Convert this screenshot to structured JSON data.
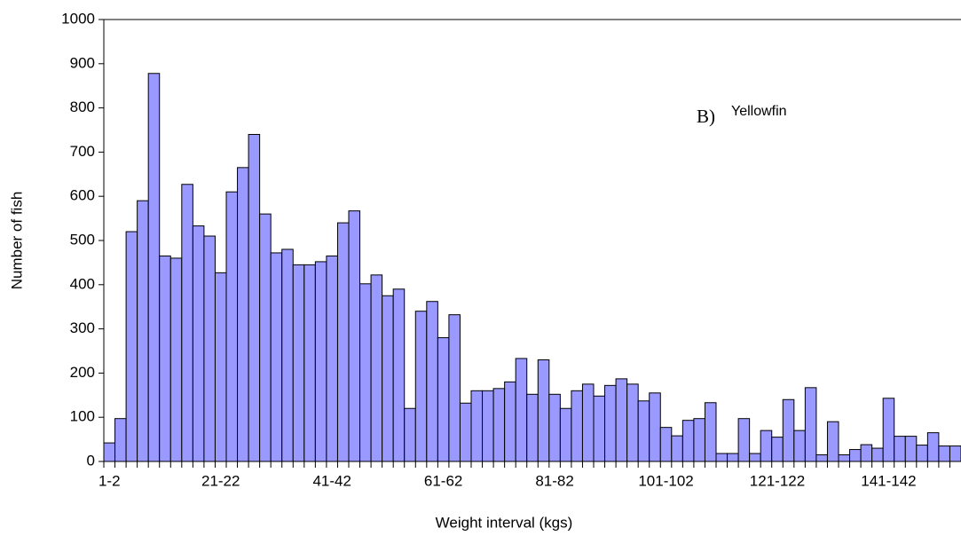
{
  "chart_data": {
    "type": "bar",
    "x_label": "Weight interval (kgs)",
    "y_label": "Number of fish",
    "annotation": {
      "prefix": "B)",
      "text": "Yellowfin"
    },
    "color": "#9999ff",
    "categories": [
      "1-2",
      null,
      null,
      null,
      null,
      null,
      null,
      null,
      null,
      null,
      "21-22",
      null,
      null,
      null,
      null,
      null,
      null,
      null,
      null,
      null,
      "41-42",
      null,
      null,
      null,
      null,
      null,
      null,
      null,
      null,
      null,
      "61-62",
      null,
      null,
      null,
      null,
      null,
      null,
      null,
      null,
      null,
      "81-82",
      null,
      null,
      null,
      null,
      null,
      null,
      null,
      null,
      null,
      "101-102",
      null,
      null,
      null,
      null,
      null,
      null,
      null,
      null,
      null,
      "121-122",
      null,
      null,
      null,
      null,
      null,
      null,
      null,
      null,
      null,
      "141-142",
      null,
      null,
      null,
      null,
      null,
      null
    ],
    "values": [
      42,
      97,
      520,
      590,
      878,
      465,
      460,
      627,
      533,
      510,
      427,
      610,
      665,
      740,
      560,
      472,
      480,
      445,
      445,
      452,
      465,
      540,
      567,
      402,
      422,
      375,
      390,
      120,
      340,
      362,
      280,
      332,
      132,
      160,
      160,
      165,
      180,
      233,
      152,
      230,
      152,
      120,
      160,
      175,
      148,
      172,
      187,
      175,
      137,
      155,
      77,
      58,
      93,
      97,
      133,
      18,
      18,
      97,
      18,
      70,
      55,
      140,
      70,
      167,
      15,
      90,
      15,
      27,
      38,
      30,
      143,
      57,
      57,
      37,
      65,
      35,
      35
    ],
    "ylim": [
      0,
      1000
    ],
    "yticks": [
      0,
      100,
      200,
      300,
      400,
      500,
      600,
      700,
      800,
      900,
      1000
    ],
    "grid": false
  }
}
